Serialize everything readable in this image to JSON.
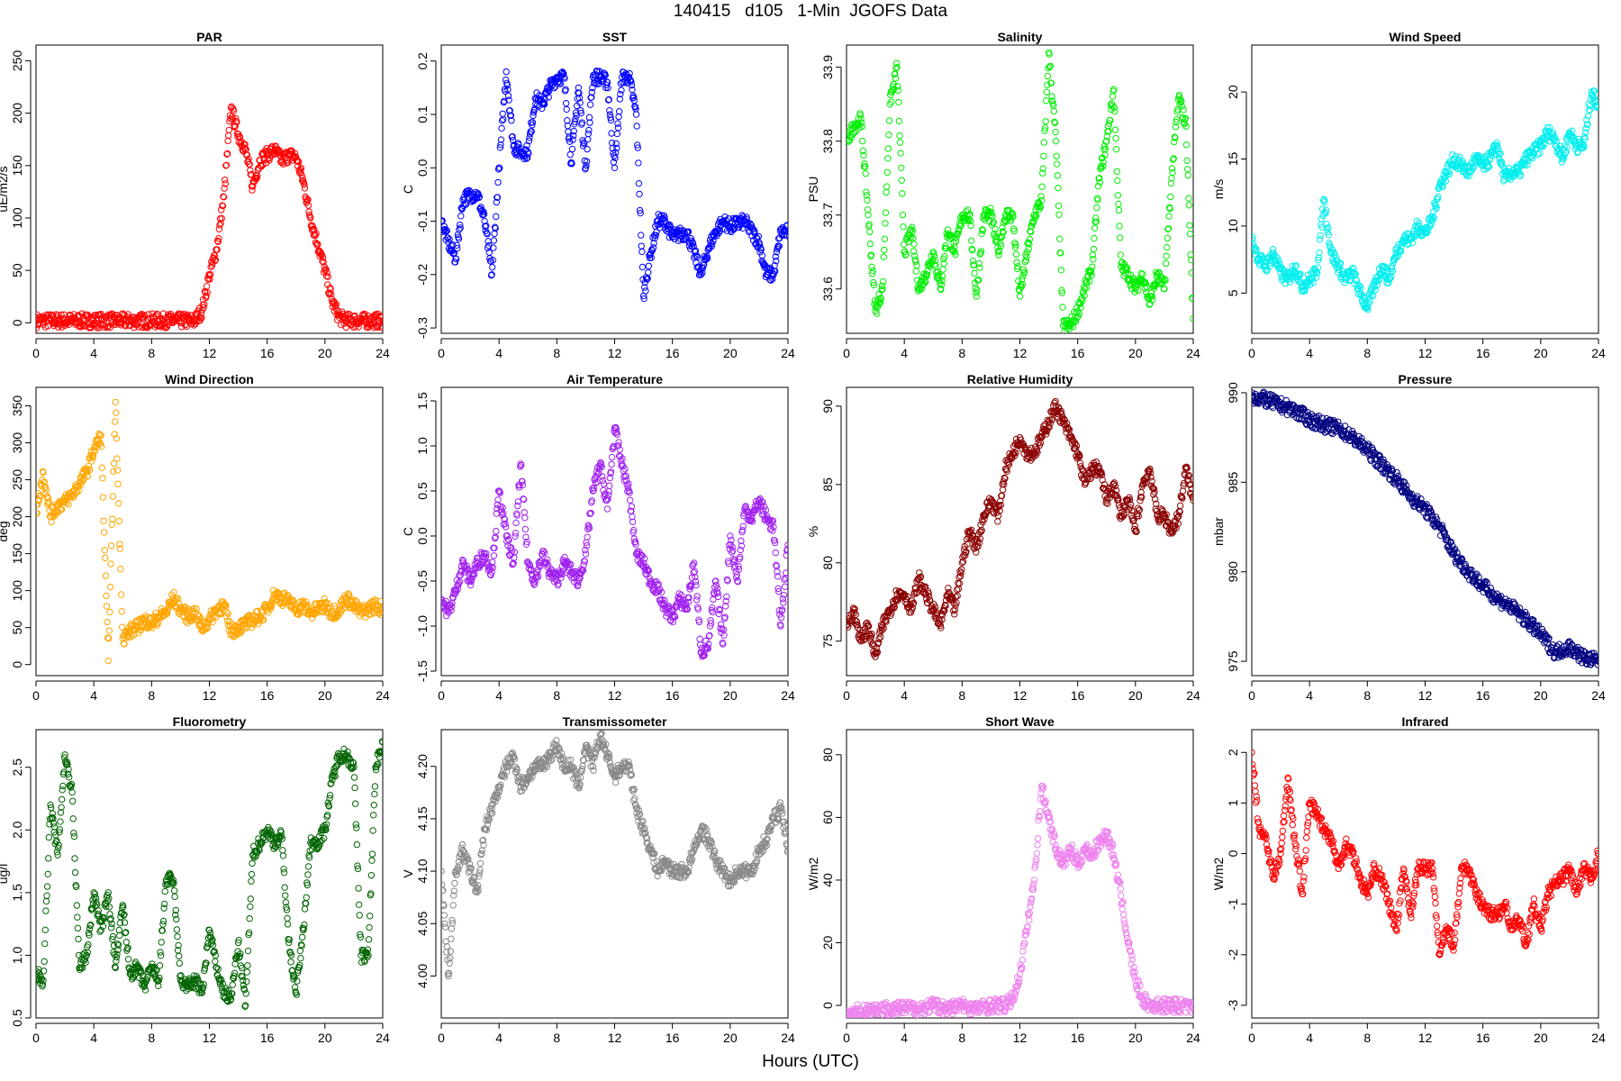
{
  "title": "140415   d105   1-Min  JGOFS Data",
  "xlabel": "Hours (UTC)",
  "chart_data": [
    {
      "type": "scatter",
      "title": "PAR",
      "ylabel": "uE/m2/s",
      "color": "#ff0000",
      "xlim": [
        0,
        24
      ],
      "ylim": [
        -10,
        265
      ],
      "xticks": [
        0,
        4,
        8,
        12,
        16,
        20,
        24
      ],
      "yticks": [
        0,
        50,
        100,
        150,
        200,
        250
      ],
      "x": [
        0,
        11,
        11.5,
        12,
        12.5,
        13,
        13.5,
        14,
        14.5,
        15,
        15.5,
        16,
        16.5,
        17,
        17.5,
        18,
        18.5,
        19,
        19.5,
        20,
        20.5,
        21,
        21.5,
        24
      ],
      "y": [
        2,
        2,
        12,
        45,
        70,
        120,
        205,
        180,
        165,
        130,
        155,
        160,
        165,
        155,
        160,
        158,
        135,
        100,
        75,
        50,
        20,
        5,
        2,
        2
      ]
    },
    {
      "type": "scatter",
      "title": "SST",
      "ylabel": "C",
      "color": "#0000ff",
      "xlim": [
        0,
        24
      ],
      "ylim": [
        -0.31,
        0.23
      ],
      "xticks": [
        0,
        4,
        8,
        12,
        16,
        20,
        24
      ],
      "yticks": [
        -0.3,
        -0.2,
        -0.1,
        0.0,
        0.1,
        0.2
      ],
      "x": [
        0,
        0.5,
        1,
        1.5,
        2,
        2.5,
        3,
        3.5,
        4,
        4.5,
        5,
        5.5,
        6,
        6.5,
        7,
        7.5,
        8,
        8.5,
        9,
        9.5,
        10,
        10.5,
        11,
        11.5,
        12,
        12.5,
        13,
        13.5,
        14,
        14.5,
        15,
        15.5,
        16,
        17,
        18,
        18.5,
        19,
        19.5,
        20,
        21,
        22,
        22.5,
        23,
        23.5,
        24
      ],
      "y": [
        -0.1,
        -0.14,
        -0.17,
        -0.06,
        -0.05,
        -0.05,
        -0.1,
        -0.2,
        0.0,
        0.18,
        0.04,
        0.03,
        0.03,
        0.13,
        0.12,
        0.15,
        0.17,
        0.17,
        0.01,
        0.15,
        0.0,
        0.17,
        0.17,
        0.16,
        0.0,
        0.17,
        0.17,
        0.1,
        -0.24,
        -0.16,
        -0.1,
        -0.1,
        -0.13,
        -0.12,
        -0.2,
        -0.15,
        -0.12,
        -0.1,
        -0.11,
        -0.1,
        -0.14,
        -0.2,
        -0.2,
        -0.12,
        -0.12
      ]
    },
    {
      "type": "scatter",
      "title": "Salinity",
      "ylabel": "PSU",
      "color": "#00ee00",
      "xlim": [
        0,
        24
      ],
      "ylim": [
        33.54,
        33.93
      ],
      "xticks": [
        0,
        4,
        8,
        12,
        16,
        20,
        24
      ],
      "yticks": [
        33.6,
        33.7,
        33.8,
        33.9
      ],
      "x": [
        0,
        0.5,
        1,
        1.5,
        2,
        2.5,
        3,
        3.5,
        4,
        4.5,
        5,
        5.5,
        6,
        6.5,
        7,
        7.5,
        8,
        8.5,
        9,
        9.5,
        10,
        10.5,
        11,
        11.5,
        12,
        12.5,
        13,
        13.5,
        14,
        14.5,
        15,
        15.5,
        16,
        16.5,
        17,
        17.5,
        18,
        18.5,
        19,
        19.5,
        20,
        20.5,
        21,
        21.5,
        22,
        22.5,
        23,
        23.5,
        24
      ],
      "y": [
        33.8,
        33.82,
        33.83,
        33.7,
        33.57,
        33.6,
        33.85,
        33.9,
        33.65,
        33.68,
        33.6,
        33.62,
        33.65,
        33.6,
        33.68,
        33.65,
        33.7,
        33.7,
        33.59,
        33.7,
        33.7,
        33.65,
        33.7,
        33.7,
        33.59,
        33.65,
        33.7,
        33.72,
        33.92,
        33.8,
        33.55,
        33.55,
        33.57,
        33.6,
        33.63,
        33.75,
        33.8,
        33.87,
        33.63,
        33.62,
        33.6,
        33.62,
        33.58,
        33.62,
        33.6,
        33.75,
        33.86,
        33.82,
        33.56
      ]
    },
    {
      "type": "scatter",
      "title": "Wind Speed",
      "ylabel": "m/s",
      "color": "#00eeee",
      "xlim": [
        0,
        24
      ],
      "ylim": [
        2,
        23.5
      ],
      "xticks": [
        0,
        4,
        8,
        12,
        16,
        20,
        24
      ],
      "yticks": [
        5,
        10,
        15,
        20
      ],
      "x": [
        0,
        0.5,
        1,
        1.5,
        2,
        2.5,
        3,
        3.5,
        4,
        4.5,
        5,
        5.5,
        6,
        6.5,
        7,
        7.5,
        8,
        8.5,
        9,
        9.5,
        10,
        10.5,
        11,
        11.5,
        12,
        12.5,
        13,
        13.5,
        14,
        14.5,
        15,
        15.5,
        16,
        16.5,
        17,
        17.5,
        18,
        18.5,
        19,
        19.5,
        20,
        20.5,
        21,
        21.5,
        22,
        22.5,
        23,
        23.5,
        24
      ],
      "y": [
        9,
        7.5,
        7,
        8,
        6.5,
        6,
        7,
        5.5,
        6,
        6.5,
        12,
        8,
        7,
        6,
        6.5,
        5,
        4,
        5.5,
        7,
        6,
        8,
        9,
        9,
        10,
        9.5,
        10.5,
        13,
        14,
        15,
        14.5,
        14,
        15,
        14.5,
        15,
        16,
        13.5,
        14,
        14,
        15,
        15.5,
        16,
        17,
        16.5,
        15,
        17,
        16,
        16,
        20,
        19
      ]
    },
    {
      "type": "scatter",
      "title": "Wind Direction",
      "ylabel": "deg",
      "color": "#ffa500",
      "xlim": [
        0,
        24
      ],
      "ylim": [
        -15,
        375
      ],
      "xticks": [
        0,
        4,
        8,
        12,
        16,
        20,
        24
      ],
      "yticks": [
        0,
        50,
        100,
        150,
        200,
        250,
        300,
        350
      ],
      "x": [
        0,
        0.5,
        1,
        1.5,
        2,
        2.5,
        3,
        3.5,
        4,
        4.5,
        5,
        5.5,
        6,
        6.5,
        7,
        7.5,
        8,
        8.5,
        9,
        9.5,
        10,
        10.5,
        11,
        11.5,
        12,
        12.5,
        13,
        13.5,
        14,
        14.5,
        15,
        15.5,
        16,
        16.5,
        17,
        17.5,
        18,
        18.5,
        19,
        19.5,
        20,
        20.5,
        21,
        21.5,
        22,
        22.5,
        23,
        23.5,
        24
      ],
      "y": [
        205,
        260,
        200,
        215,
        220,
        230,
        245,
        260,
        290,
        310,
        5,
        355,
        35,
        45,
        50,
        60,
        55,
        65,
        70,
        90,
        75,
        65,
        70,
        50,
        60,
        75,
        80,
        45,
        50,
        55,
        60,
        65,
        75,
        95,
        90,
        85,
        75,
        80,
        70,
        75,
        80,
        70,
        75,
        90,
        80,
        70,
        75,
        80,
        75
      ]
    },
    {
      "type": "scatter",
      "title": "Air Temperature",
      "ylabel": "C",
      "color": "#a020f0",
      "xlim": [
        0,
        24
      ],
      "ylim": [
        -1.55,
        1.65
      ],
      "xticks": [
        0,
        4,
        8,
        12,
        16,
        20,
        24
      ],
      "yticks": [
        -1.5,
        -1.0,
        -0.5,
        0.0,
        0.5,
        1.0,
        1.5
      ],
      "x": [
        0,
        0.5,
        1,
        1.5,
        2,
        2.5,
        3,
        3.5,
        4,
        4.5,
        5,
        5.5,
        6,
        6.5,
        7,
        7.5,
        8,
        8.5,
        9,
        9.5,
        10,
        10.5,
        11,
        11.5,
        12,
        12.5,
        13,
        13.5,
        14,
        14.5,
        15,
        15.5,
        16,
        16.5,
        17,
        17.5,
        18,
        18.5,
        19,
        19.5,
        20,
        20.5,
        21,
        21.5,
        22,
        22.5,
        23,
        23.5,
        24
      ],
      "y": [
        -0.7,
        -0.85,
        -0.6,
        -0.3,
        -0.5,
        -0.3,
        -0.2,
        -0.4,
        0.5,
        0.0,
        -0.3,
        0.8,
        -0.3,
        -0.5,
        -0.2,
        -0.4,
        -0.5,
        -0.3,
        -0.4,
        -0.5,
        -0.2,
        0.5,
        0.8,
        0.3,
        1.2,
        0.8,
        0.5,
        -0.2,
        -0.3,
        -0.5,
        -0.6,
        -0.8,
        -0.9,
        -0.7,
        -0.8,
        -0.3,
        -1.3,
        -1.2,
        -0.5,
        -1.2,
        0.0,
        -0.5,
        0.3,
        0.2,
        0.4,
        0.2,
        0.1,
        -1.0,
        -0.1
      ]
    },
    {
      "type": "scatter",
      "title": "Relative Humidity",
      "ylabel": "%",
      "color": "#8b0000",
      "xlim": [
        0,
        24
      ],
      "ylim": [
        72.8,
        91.2
      ],
      "xticks": [
        0,
        4,
        8,
        12,
        16,
        20,
        24
      ],
      "yticks": [
        75,
        80,
        85,
        90
      ],
      "x": [
        0,
        0.5,
        1,
        1.5,
        2,
        2.5,
        3,
        3.5,
        4,
        4.5,
        5,
        5.5,
        6,
        6.5,
        7,
        7.5,
        8,
        8.5,
        9,
        9.5,
        10,
        10.5,
        11,
        11.5,
        12,
        12.5,
        13,
        13.5,
        14,
        14.5,
        15,
        15.5,
        16,
        16.5,
        17,
        17.5,
        18,
        18.5,
        19,
        19.5,
        20,
        20.5,
        21,
        21.5,
        22,
        22.5,
        23,
        23.5,
        24
      ],
      "y": [
        76,
        77,
        75,
        76,
        74,
        76,
        77,
        78,
        78,
        77,
        79,
        78,
        77,
        76,
        78,
        77,
        80,
        82,
        81,
        83,
        84,
        83,
        86,
        87,
        88,
        87,
        87,
        88,
        89,
        90,
        89,
        88,
        87,
        85,
        86,
        86,
        84,
        85,
        83,
        84,
        82,
        85,
        86,
        83,
        83,
        82,
        83,
        86,
        84
      ]
    },
    {
      "type": "scatter",
      "title": "Pressure",
      "ylabel": "mbar",
      "color": "#000080",
      "xlim": [
        0,
        24
      ],
      "ylim": [
        974.2,
        990.3
      ],
      "xticks": [
        0,
        4,
        8,
        12,
        16,
        20,
        24
      ],
      "yticks": [
        975,
        980,
        985,
        990
      ],
      "x": [
        0,
        1,
        2,
        3,
        4,
        5,
        6,
        7,
        8,
        9,
        10,
        11,
        12,
        13,
        14,
        15,
        16,
        17,
        18,
        19,
        20,
        21,
        22,
        23,
        24
      ],
      "y": [
        989.8,
        989.6,
        989.3,
        989.0,
        988.5,
        988.2,
        988.0,
        987.5,
        986.8,
        986.0,
        985.2,
        984.2,
        983.5,
        982.5,
        981.0,
        980.0,
        979.2,
        978.5,
        978.0,
        977.3,
        976.5,
        975.5,
        975.8,
        975.2,
        975.0
      ]
    },
    {
      "type": "scatter",
      "title": "Fluorometry",
      "ylabel": "ug/l",
      "color": "#006400",
      "xlim": [
        0,
        24
      ],
      "ylim": [
        0.5,
        2.8
      ],
      "xticks": [
        0,
        4,
        8,
        12,
        16,
        20,
        24
      ],
      "yticks": [
        0.5,
        1.0,
        1.5,
        2.0,
        2.5
      ],
      "x": [
        0,
        0.5,
        1,
        1.5,
        2,
        2.5,
        3,
        3.5,
        4,
        4.5,
        5,
        5.5,
        6,
        6.5,
        7,
        7.5,
        8,
        8.5,
        9,
        9.5,
        10,
        10.5,
        11,
        11.5,
        12,
        12.5,
        13,
        13.5,
        14,
        14.5,
        15,
        15.5,
        16,
        16.5,
        17,
        17.5,
        18,
        18.5,
        19,
        19.5,
        20,
        20.5,
        21,
        21.5,
        22,
        22.5,
        23,
        23.5,
        24
      ],
      "y": [
        0.85,
        0.8,
        2.2,
        1.8,
        2.6,
        2.3,
        0.9,
        1.0,
        1.5,
        1.2,
        1.5,
        0.9,
        1.4,
        0.85,
        0.9,
        0.75,
        0.9,
        0.8,
        1.6,
        1.6,
        0.8,
        0.75,
        0.8,
        0.7,
        1.2,
        0.9,
        0.7,
        0.65,
        1.1,
        0.6,
        1.8,
        1.9,
        2.0,
        1.9,
        1.95,
        1.1,
        0.7,
        1.2,
        1.9,
        1.9,
        2.0,
        2.4,
        2.6,
        2.6,
        2.5,
        1.0,
        1.0,
        2.5,
        2.7
      ]
    },
    {
      "type": "scatter",
      "title": "Transmissometer",
      "ylabel": "V",
      "color": "#888888",
      "xlim": [
        0,
        24
      ],
      "ylim": [
        3.96,
        4.235
      ],
      "xticks": [
        0,
        4,
        8,
        12,
        16,
        20,
        24
      ],
      "yticks": [
        4.0,
        4.05,
        4.1,
        4.15,
        4.2
      ],
      "x": [
        0,
        0.5,
        1,
        1.5,
        2,
        2.5,
        3,
        3.5,
        4,
        4.5,
        5,
        5.5,
        6,
        6.5,
        7,
        7.5,
        8,
        8.5,
        9,
        9.5,
        10,
        10.5,
        11,
        11.5,
        12,
        12.5,
        13,
        13.5,
        14,
        14.5,
        15,
        15.5,
        16,
        16.5,
        17,
        17.5,
        18,
        18.5,
        19,
        19.5,
        20,
        20.5,
        21,
        21.5,
        22,
        22.5,
        23,
        23.5,
        24
      ],
      "y": [
        4.1,
        4.0,
        4.1,
        4.12,
        4.1,
        4.08,
        4.14,
        4.16,
        4.18,
        4.2,
        4.21,
        4.18,
        4.19,
        4.2,
        4.2,
        4.21,
        4.22,
        4.2,
        4.2,
        4.18,
        4.22,
        4.2,
        4.23,
        4.21,
        4.19,
        4.2,
        4.2,
        4.16,
        4.14,
        4.12,
        4.1,
        4.11,
        4.1,
        4.1,
        4.1,
        4.12,
        4.14,
        4.13,
        4.11,
        4.1,
        4.09,
        4.1,
        4.1,
        4.1,
        4.12,
        4.13,
        4.15,
        4.16,
        4.12
      ]
    },
    {
      "type": "scatter",
      "title": "Short Wave",
      "ylabel": "W/m2",
      "color": "#ee82ee",
      "xlim": [
        0,
        24
      ],
      "ylim": [
        -4,
        88
      ],
      "xticks": [
        0,
        4,
        8,
        12,
        16,
        20,
        24
      ],
      "yticks": [
        0,
        20,
        40,
        60,
        80
      ],
      "x": [
        0,
        1,
        2,
        3,
        4,
        5,
        6,
        7,
        8,
        9,
        10,
        11,
        11.5,
        12,
        12.5,
        13,
        13.5,
        14,
        14.5,
        15,
        15.5,
        16,
        16.5,
        17,
        17.5,
        18,
        18.5,
        19,
        19.5,
        20,
        20.5,
        21,
        22,
        23,
        24
      ],
      "y": [
        -2,
        -2,
        -1,
        -1,
        -1,
        -1,
        0,
        -1,
        0,
        -1,
        0,
        0,
        2,
        10,
        25,
        40,
        70,
        60,
        50,
        45,
        50,
        45,
        50,
        48,
        52,
        55,
        48,
        35,
        20,
        8,
        2,
        0,
        0,
        0,
        -1
      ]
    },
    {
      "type": "scatter",
      "title": "Infrared",
      "ylabel": "W/m2",
      "color": "#ff0000",
      "xlim": [
        0,
        24
      ],
      "ylim": [
        -3.25,
        2.45
      ],
      "xticks": [
        0,
        4,
        8,
        12,
        16,
        20,
        24
      ],
      "yticks": [
        -3,
        -2,
        -1,
        0,
        1,
        2
      ],
      "x": [
        0,
        0.5,
        1,
        1.5,
        2,
        2.5,
        3,
        3.5,
        4,
        4.5,
        5,
        5.5,
        6,
        6.5,
        7,
        7.5,
        8,
        8.5,
        9,
        9.5,
        10,
        10.5,
        11,
        11.5,
        12,
        12.5,
        13,
        13.5,
        14,
        14.5,
        15,
        15.5,
        16,
        16.5,
        17,
        17.5,
        18,
        18.5,
        19,
        19.5,
        20,
        20.5,
        21,
        21.5,
        22,
        22.5,
        23,
        23.5,
        24
      ],
      "y": [
        2.0,
        0.5,
        0.3,
        -0.5,
        0.0,
        1.5,
        0.2,
        -0.8,
        1.0,
        0.8,
        0.5,
        0.3,
        -0.3,
        0.2,
        0.0,
        -0.5,
        -0.8,
        -0.3,
        -0.5,
        -1.0,
        -1.5,
        -0.3,
        -1.2,
        -0.3,
        -0.3,
        -0.3,
        -2.0,
        -1.5,
        -1.8,
        -0.3,
        -0.3,
        -0.8,
        -1.0,
        -1.2,
        -1.2,
        -1.0,
        -1.5,
        -1.3,
        -1.8,
        -1.0,
        -1.5,
        -0.8,
        -0.6,
        -0.5,
        -0.3,
        -0.8,
        -0.3,
        -0.5,
        0.0
      ]
    }
  ]
}
